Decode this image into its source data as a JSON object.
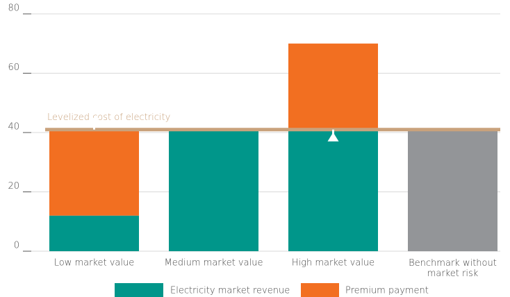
{
  "chart_data": {
    "type": "bar",
    "stacked": true,
    "categories": [
      "Low market value",
      "Medium market value",
      "High market value",
      "Benchmark without market risk"
    ],
    "series": [
      {
        "name": "Electricity market revenue",
        "color": "#00968a",
        "point_colors": [
          "#00968a",
          "#00968a",
          "#00968a",
          "#939598"
        ],
        "values": [
          12,
          41,
          41,
          41
        ]
      },
      {
        "name": "Premium payment",
        "color": "#f26f21",
        "values": [
          29,
          0,
          29,
          0
        ]
      }
    ],
    "reference_line": {
      "label": "Levelized cost of electricity",
      "value": 41,
      "color": "#c9a27c"
    },
    "ylim": [
      0,
      80
    ],
    "yticks": [
      0,
      20,
      40,
      60,
      80
    ],
    "grid": true,
    "legend": "bottom"
  }
}
